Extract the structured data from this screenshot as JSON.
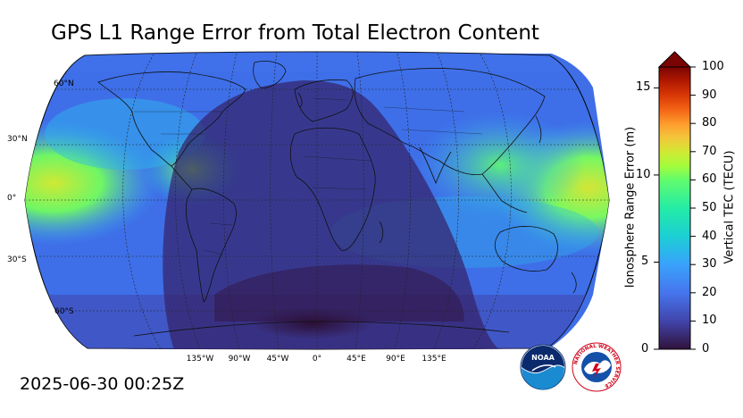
{
  "title": "GPS L1 Range Error from Total Electron Content",
  "timestamp": "2025-06-30 00:25Z",
  "map": {
    "projection": "robinson",
    "latitude_labels": [
      "60°N",
      "30°N",
      "0°",
      "30°S",
      "60°S"
    ],
    "longitude_labels": [
      "135°W",
      "90°W",
      "45°W",
      "0°",
      "45°E",
      "90°E",
      "135°E"
    ],
    "night_region": "darker shaded band centered on Atlantic/Africa/Europe"
  },
  "colorbar": {
    "left_label": "Ionosphere Range Error (m)",
    "right_label": "Vertical TEC (TECU)",
    "left_ticks": [
      "0",
      "5",
      "10",
      "15"
    ],
    "right_ticks": [
      "0",
      "10",
      "20",
      "30",
      "40",
      "50",
      "60",
      "70",
      "80",
      "90",
      "100"
    ],
    "range_tecu": [
      0,
      100
    ],
    "range_m": [
      0,
      16.2
    ],
    "extend": "max"
  },
  "logos": {
    "noaa": "NOAA",
    "nws": "NATIONAL WEATHER SERVICE"
  },
  "colors": {
    "low": "#30123b",
    "mid_low": "#4667d9",
    "mid": "#1ae4b6",
    "mid_high": "#a4fc3b",
    "high": "#f1ca3a",
    "max": "#7a0403"
  }
}
